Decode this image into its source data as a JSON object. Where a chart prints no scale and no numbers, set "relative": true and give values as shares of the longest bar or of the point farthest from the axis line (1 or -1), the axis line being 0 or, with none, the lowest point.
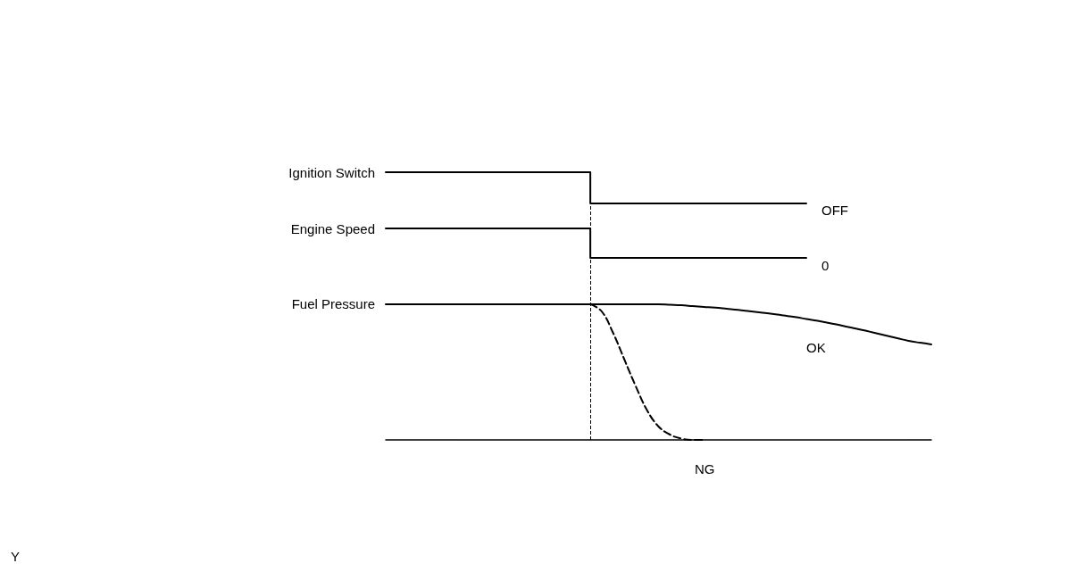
{
  "chart_data": {
    "type": "line",
    "relative": true,
    "categories": [
      null,
      null,
      null,
      null,
      null,
      null,
      null,
      null,
      null,
      null,
      null,
      null,
      null,
      null,
      null,
      null,
      null,
      null,
      null,
      null,
      null,
      null,
      null,
      null,
      null,
      null,
      null,
      null,
      null,
      null,
      null,
      null,
      null,
      null,
      null,
      null,
      null,
      null,
      null,
      null,
      null,
      null,
      null,
      null,
      null,
      null,
      null,
      null,
      null
    ],
    "series": [
      {
        "name": "Ignition Switch",
        "type": "step",
        "color": "#000000",
        "line_style": "solid",
        "values": [
          1,
          1,
          1,
          1,
          1,
          1,
          1,
          1,
          1,
          1,
          1,
          1,
          1,
          1,
          1,
          1,
          1,
          1,
          1,
          0.883,
          0.883,
          0.883,
          0.883,
          0.883,
          0.883,
          0.883,
          0.883,
          0.883,
          0.883,
          0.883,
          0.883,
          0.883,
          0.883,
          0.883,
          0.883,
          0.883,
          0.883,
          0.883,
          null,
          null,
          null,
          null,
          null,
          null,
          null,
          null,
          null,
          null,
          null
        ]
      },
      {
        "name": "Engine Speed",
        "type": "step",
        "color": "#000000",
        "line_style": "solid",
        "values": [
          0.79,
          0.79,
          0.79,
          0.79,
          0.79,
          0.79,
          0.79,
          0.79,
          0.79,
          0.79,
          0.79,
          0.79,
          0.79,
          0.79,
          0.79,
          0.79,
          0.79,
          0.79,
          0.79,
          0.68,
          0.68,
          0.68,
          0.68,
          0.68,
          0.68,
          0.68,
          0.68,
          0.68,
          0.68,
          0.68,
          0.68,
          0.68,
          0.68,
          0.68,
          0.68,
          0.68,
          0.68,
          0.68,
          null,
          null,
          null,
          null,
          null,
          null,
          null,
          null,
          null,
          null,
          null
        ]
      },
      {
        "name": "Fuel Pressure",
        "color": "#000000",
        "line_style": "solid",
        "values": [
          0.507,
          0.507,
          0.507,
          0.507,
          0.507,
          0.507,
          0.507,
          0.507,
          0.507,
          0.507,
          0.507,
          0.507,
          0.507,
          0.507,
          0.507,
          0.507,
          0.507,
          0.507,
          0.507,
          0.507,
          0.507,
          0.507,
          0.507,
          0.507,
          0.507,
          0.505,
          0.503,
          0.5,
          0.497,
          0.494,
          0.49,
          0.486,
          0.481,
          0.476,
          0.471,
          0.465,
          0.459,
          0.452,
          0.445,
          0.437,
          0.428,
          0.419,
          0.41,
          0.4,
          0.39,
          0.38,
          0.37,
          0.363,
          0.357
        ]
      },
      {
        "type": "line",
        "color": "#000000",
        "line_style": "dashed",
        "values": [
          null,
          null,
          null,
          null,
          null,
          null,
          null,
          null,
          null,
          null,
          null,
          null,
          null,
          null,
          null,
          null,
          null,
          null,
          0.507,
          0.48,
          0.4,
          0.3,
          0.2,
          0.11,
          0.05,
          0.02,
          0.005,
          0,
          0,
          null,
          null,
          null,
          null,
          null,
          null,
          null,
          null,
          null,
          null,
          null,
          null,
          null,
          null,
          null,
          null,
          null,
          null,
          null,
          null
        ]
      }
    ],
    "annotations": [
      "OFF",
      "0",
      "OK",
      "NG",
      "Y"
    ],
    "marker": "none",
    "grid": false,
    "legend": false
  }
}
